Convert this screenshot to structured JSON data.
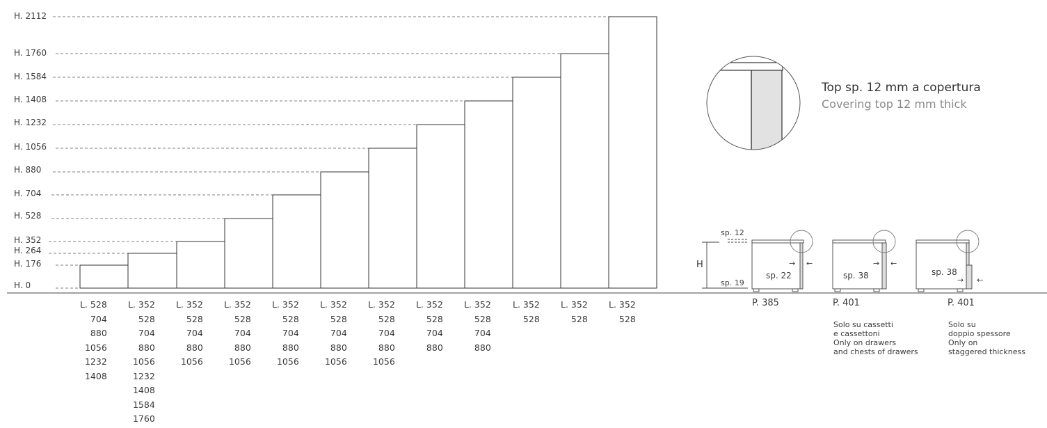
{
  "height_labels": [
    "H. 2112",
    "H. 1760",
    "H. 1584",
    "H. 1408",
    "H. 1232",
    "H. 1056",
    "H. 880",
    "H. 704",
    "H. 528",
    "H. 352",
    "H. 264",
    "H. 176",
    "H. 0"
  ],
  "columns": [
    {
      "head": "L. 528",
      "values": [
        "704",
        "880",
        "1056",
        "1232",
        "1408"
      ]
    },
    {
      "head": "L. 352",
      "values": [
        "528",
        "704",
        "880",
        "1056",
        "1232",
        "1408",
        "1584",
        "1760"
      ]
    },
    {
      "head": "L. 352",
      "values": [
        "528",
        "704",
        "880",
        "1056"
      ]
    },
    {
      "head": "L. 352",
      "values": [
        "528",
        "704",
        "880",
        "1056"
      ]
    },
    {
      "head": "L. 352",
      "values": [
        "528",
        "704",
        "880",
        "1056"
      ]
    },
    {
      "head": "L. 352",
      "values": [
        "528",
        "704",
        "880",
        "1056"
      ]
    },
    {
      "head": "L. 352",
      "values": [
        "528",
        "704",
        "880",
        "1056"
      ]
    },
    {
      "head": "L. 352",
      "values": [
        "528",
        "704",
        "880"
      ]
    },
    {
      "head": "L. 352",
      "values": [
        "528",
        "704",
        "880"
      ]
    },
    {
      "head": "L. 352",
      "values": [
        "528"
      ]
    },
    {
      "head": "L. 352",
      "values": [
        "528"
      ]
    },
    {
      "head": "L. 352",
      "values": [
        "528"
      ]
    }
  ],
  "detail": {
    "title_it": "Top sp. 12 mm a copertura",
    "title_en": "Covering top 12 mm thick"
  },
  "small_diagrams": {
    "h_label": "H",
    "sp12": "sp. 12",
    "sp19": "sp. 19",
    "sp22": "sp. 22",
    "sp38a": "sp. 38",
    "sp38b": "sp. 38",
    "arrow_right": "→",
    "arrow_left": "←"
  },
  "pages": {
    "p1": "P. 385",
    "p2": "P. 401",
    "p3": "P. 401"
  },
  "notes": {
    "note1": [
      "Solo su cassetti",
      "e cassettoni",
      "Only on drawers",
      "and chests of drawers"
    ],
    "note2": [
      "Solo su",
      "doppio spessore",
      "Only on",
      "staggered thickness"
    ]
  }
}
